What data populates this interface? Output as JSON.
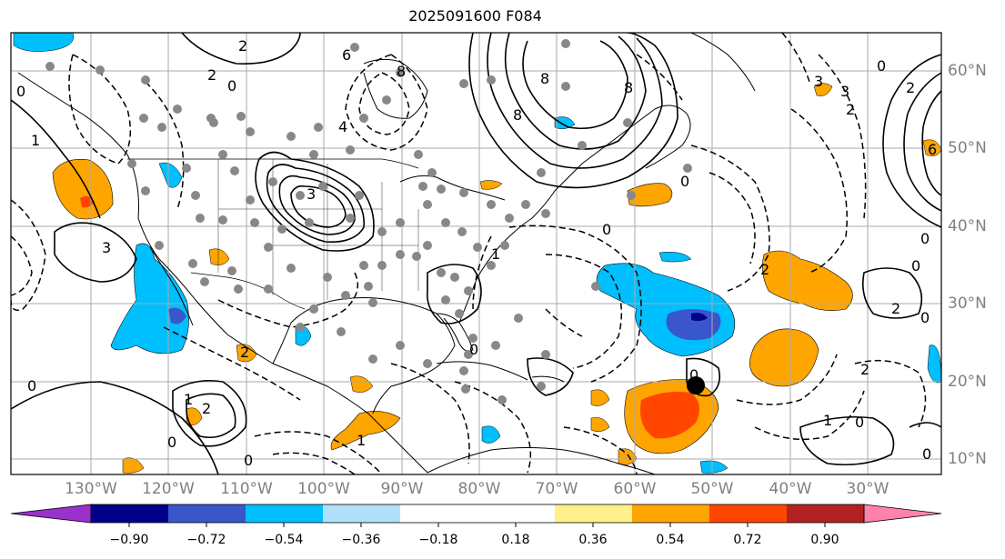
{
  "title": "2025091600 F084",
  "lat_labels": [
    "60°N",
    "50°N",
    "40°N",
    "30°N",
    "20°N",
    "10°N"
  ],
  "lon_labels": [
    "130°W",
    "120°W",
    "110°W",
    "100°W",
    "90°W",
    "80°W",
    "70°W",
    "60°W",
    "50°W",
    "40°W",
    "30°W"
  ],
  "colorbar": {
    "ticks": [
      "−0.90",
      "−0.72",
      "−0.54",
      "−0.36",
      "−0.18",
      "0.18",
      "0.36",
      "0.54",
      "0.72",
      "0.90"
    ],
    "colors": [
      "#9a31cd",
      "#00008b",
      "#3a56cb",
      "#00bfff",
      "#b0e0fa",
      "#ffffff",
      "#fff08c",
      "#ffa500",
      "#ff4500",
      "#b22222",
      "#ff82ac"
    ]
  },
  "contour_labels": [
    {
      "text": "2"
    },
    {
      "text": "2"
    },
    {
      "text": "6"
    },
    {
      "text": "8"
    },
    {
      "text": "8"
    },
    {
      "text": "8"
    },
    {
      "text": "8"
    },
    {
      "text": "0"
    },
    {
      "text": "2"
    },
    {
      "text": "3"
    },
    {
      "text": "2"
    },
    {
      "text": "6"
    },
    {
      "text": "0"
    },
    {
      "text": "3"
    },
    {
      "text": "4"
    },
    {
      "text": "1"
    },
    {
      "text": "0"
    },
    {
      "text": "3"
    },
    {
      "text": "0"
    },
    {
      "text": "1"
    },
    {
      "text": "2"
    },
    {
      "text": "0"
    },
    {
      "text": "0"
    },
    {
      "text": "0"
    },
    {
      "text": "2"
    },
    {
      "text": "0"
    },
    {
      "text": "0"
    },
    {
      "text": "2"
    },
    {
      "text": "0"
    },
    {
      "text": "1"
    },
    {
      "text": "2"
    },
    {
      "text": "1"
    },
    {
      "text": "0"
    },
    {
      "text": "0"
    },
    {
      "text": "2"
    },
    {
      "text": "0"
    },
    {
      "text": "1"
    },
    {
      "text": "0"
    },
    {
      "text": "0"
    },
    {
      "text": "3"
    }
  ]
}
